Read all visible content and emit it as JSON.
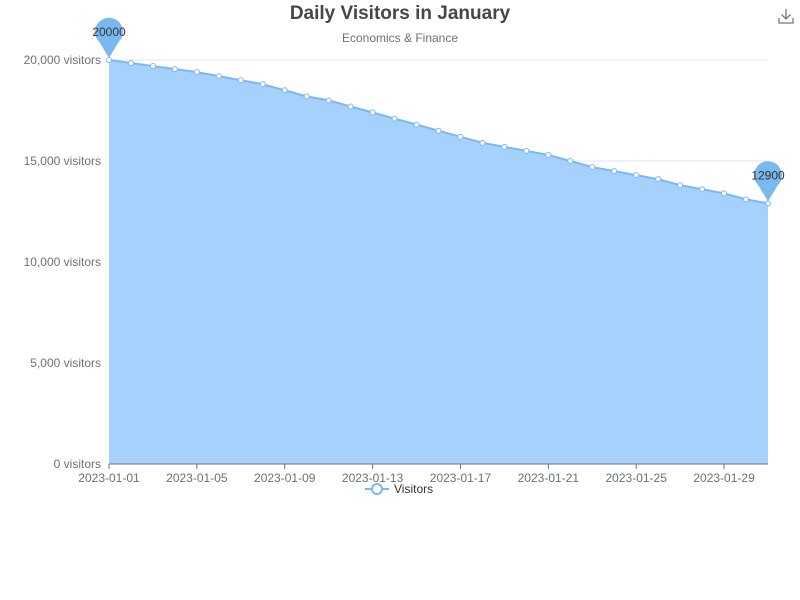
{
  "chart_data": {
    "type": "area",
    "title": "Daily Visitors in January",
    "subtitle": "Economics & Finance",
    "x": [
      "2023-01-01",
      "2023-01-02",
      "2023-01-03",
      "2023-01-04",
      "2023-01-05",
      "2023-01-06",
      "2023-01-07",
      "2023-01-08",
      "2023-01-09",
      "2023-01-10",
      "2023-01-11",
      "2023-01-12",
      "2023-01-13",
      "2023-01-14",
      "2023-01-15",
      "2023-01-16",
      "2023-01-17",
      "2023-01-18",
      "2023-01-19",
      "2023-01-20",
      "2023-01-21",
      "2023-01-22",
      "2023-01-23",
      "2023-01-24",
      "2023-01-25",
      "2023-01-26",
      "2023-01-27",
      "2023-01-28",
      "2023-01-29",
      "2023-01-30",
      "2023-01-31"
    ],
    "x_tick_labels": [
      "2023-01-01",
      "2023-01-05",
      "2023-01-09",
      "2023-01-13",
      "2023-01-17",
      "2023-01-21",
      "2023-01-25",
      "2023-01-29"
    ],
    "series": [
      {
        "name": "Visitors",
        "values": [
          20000,
          19850,
          19700,
          19550,
          19400,
          19200,
          19000,
          18800,
          18500,
          18200,
          18000,
          17700,
          17400,
          17100,
          16800,
          16500,
          16200,
          15900,
          15700,
          15500,
          15300,
          15000,
          14700,
          14500,
          14300,
          14100,
          13800,
          13600,
          13400,
          13100,
          12900
        ]
      }
    ],
    "ylim": [
      0,
      20000
    ],
    "y_ticks": [
      0,
      5000,
      10000,
      15000,
      20000
    ],
    "y_tick_labels": [
      "0 visitors",
      "5,000 visitors",
      "10,000 visitors",
      "15,000 visitors",
      "20,000 visitors"
    ],
    "markers": [
      {
        "label": "20000",
        "index": 0
      },
      {
        "label": "12900",
        "index": 30
      }
    ],
    "legend": {
      "entries": [
        "Visitors"
      ],
      "position": "bottom-center"
    },
    "colors": {
      "line": "#7ab8f0",
      "area": "#a6d1fc",
      "pin": "#7ab8f0",
      "axis": "#6e7079",
      "grid": "#e0e6f1"
    },
    "grid": true
  },
  "toolbar": {
    "download_icon": "download-icon"
  }
}
